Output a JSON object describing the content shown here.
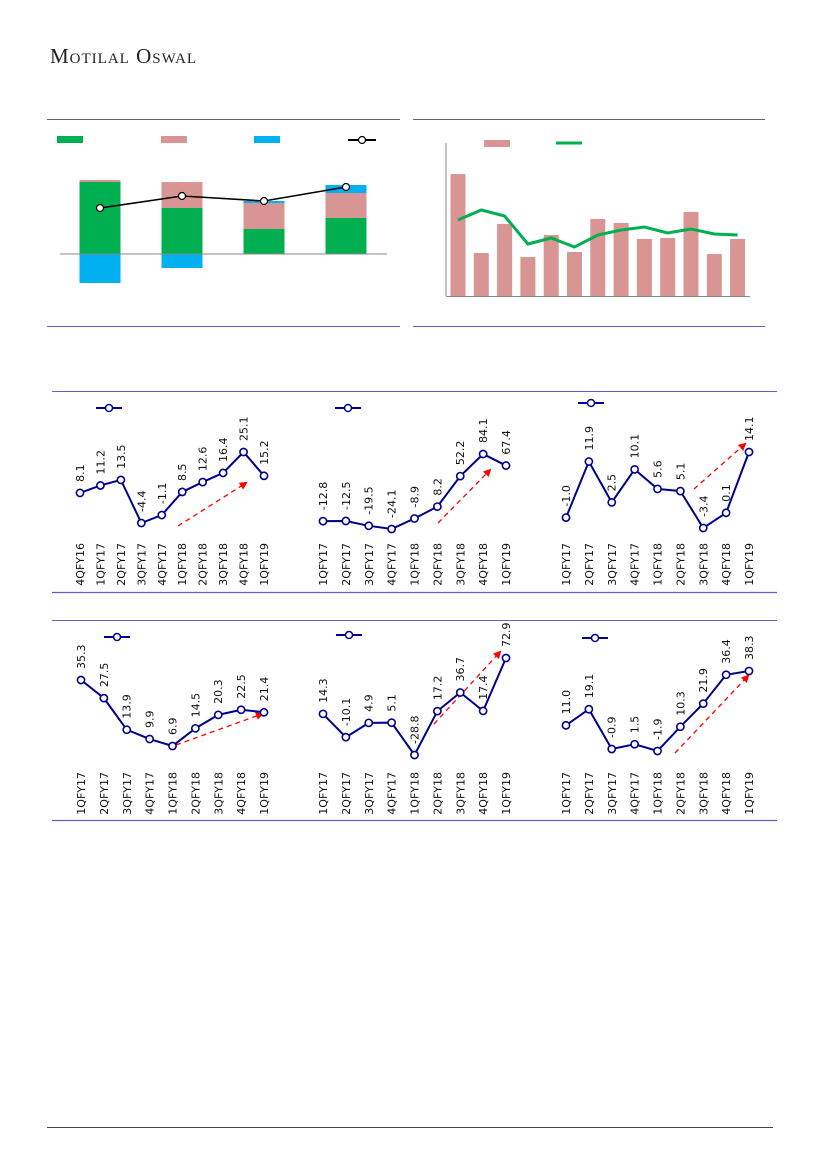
{
  "header": {
    "brand": "Motilal Oswal"
  },
  "colors": {
    "green": "#00b050",
    "pink": "#d99594",
    "blue": "#00b0f0",
    "navy": "#00008b",
    "arrow": "#ff0000",
    "rule": "#6a5acd"
  },
  "chart_data": [
    {
      "type": "bar",
      "stacked": true,
      "categories": [
        "",
        "",
        "",
        ""
      ],
      "series": [
        {
          "name": "",
          "color": "#00b050",
          "values": [
            72,
            46,
            25,
            36
          ]
        },
        {
          "name": "",
          "color": "#d99594",
          "values": [
            2,
            26,
            26,
            25
          ]
        },
        {
          "name": "",
          "color": "#00b0f0",
          "values": [
            -29,
            -14,
            2,
            8
          ]
        },
        {
          "name": "",
          "type": "line",
          "color": "#000000",
          "values": [
            46,
            58,
            53,
            67
          ]
        }
      ],
      "ylim": [
        -40,
        90
      ]
    },
    {
      "type": "bar",
      "categories": [
        "",
        "",
        "",
        "",
        "",
        "",
        "",
        "",
        "",
        "",
        "",
        "",
        ""
      ],
      "series": [
        {
          "name": "",
          "color": "#d99594",
          "values": [
            122,
            43,
            72,
            39,
            61,
            44,
            77,
            73,
            57,
            58,
            84,
            42,
            57
          ]
        },
        {
          "name": "",
          "type": "line",
          "color": "#00b050",
          "values": [
            76,
            86,
            80,
            52,
            58,
            49,
            61,
            66,
            69,
            63,
            67,
            62,
            61
          ]
        }
      ],
      "ylim": [
        0,
        150
      ]
    },
    {
      "type": "line",
      "categories": [
        "4QFY16",
        "1QFY17",
        "2QFY17",
        "3QFY17",
        "4QFY17",
        "1QFY18",
        "2QFY18",
        "3QFY18",
        "4QFY18",
        "1QFY19"
      ],
      "values": [
        8.1,
        11.2,
        13.5,
        -4.4,
        -1.1,
        8.5,
        12.6,
        16.4,
        25.1,
        15.2
      ],
      "labels": [
        "8.1",
        "11.2",
        "13.5",
        "-4.4",
        "-1.1",
        "8.5",
        "12.6",
        "16.4",
        "25.1",
        "15.2"
      ]
    },
    {
      "type": "line",
      "categories": [
        "1QFY17",
        "2QFY17",
        "3QFY17",
        "4QFY17",
        "1QFY18",
        "2QFY18",
        "3QFY18",
        "4QFY18",
        "1QFY19"
      ],
      "values": [
        -12.8,
        -12.5,
        -19.5,
        -24.1,
        -8.9,
        8.2,
        52.2,
        84.1,
        67.4
      ],
      "labels": [
        "-12.8",
        "-12.5",
        "-19.5",
        "-24.1",
        "-8.9",
        "8.2",
        "52.2",
        "84.1",
        "67.4"
      ]
    },
    {
      "type": "line",
      "categories": [
        "1QFY17",
        "2QFY17",
        "3QFY17",
        "4QFY17",
        "1QFY18",
        "2QFY18",
        "3QFY18",
        "4QFY18",
        "1QFY19"
      ],
      "values": [
        -1.0,
        11.9,
        2.5,
        10.1,
        5.6,
        5.1,
        -3.4,
        0.1,
        14.1
      ],
      "labels": [
        "-1.0",
        "11.9",
        "2.5",
        "10.1",
        "5.6",
        "5.1",
        "-3.4",
        "0.1",
        "14.1"
      ]
    },
    {
      "type": "line",
      "categories": [
        "1QFY17",
        "2QFY17",
        "3QFY17",
        "4QFY17",
        "1QFY18",
        "2QFY18",
        "3QFY18",
        "4QFY18",
        "1QFY19"
      ],
      "values": [
        35.3,
        27.5,
        13.9,
        9.9,
        6.9,
        14.5,
        20.3,
        22.5,
        21.4
      ],
      "labels": [
        "35.3",
        "27.5",
        "13.9",
        "9.9",
        "6.9",
        "14.5",
        "20.3",
        "22.5",
        "21.4"
      ]
    },
    {
      "type": "line",
      "categories": [
        "1QFY17",
        "2QFY17",
        "3QFY17",
        "4QFY17",
        "1QFY18",
        "2QFY18",
        "3QFY18",
        "4QFY18",
        "1QFY19"
      ],
      "values": [
        14.3,
        -10.1,
        4.9,
        5.1,
        -28.8,
        17.2,
        36.7,
        17.4,
        72.9
      ],
      "labels": [
        "14.3",
        "-10.1",
        "4.9",
        "5.1",
        "-28.8",
        "17.2",
        "36.7",
        "17.4",
        "72.9"
      ]
    },
    {
      "type": "line",
      "categories": [
        "1QFY17",
        "2QFY17",
        "3QFY17",
        "4QFY17",
        "1QFY18",
        "2QFY18",
        "3QFY18",
        "4QFY18",
        "1QFY19"
      ],
      "values": [
        11.0,
        19.1,
        -0.9,
        1.5,
        -1.9,
        10.3,
        21.9,
        36.4,
        38.3
      ],
      "labels": [
        "11.0",
        "19.1",
        "-0.9",
        "1.5",
        "-1.9",
        "10.3",
        "21.9",
        "36.4",
        "38.3"
      ]
    }
  ]
}
